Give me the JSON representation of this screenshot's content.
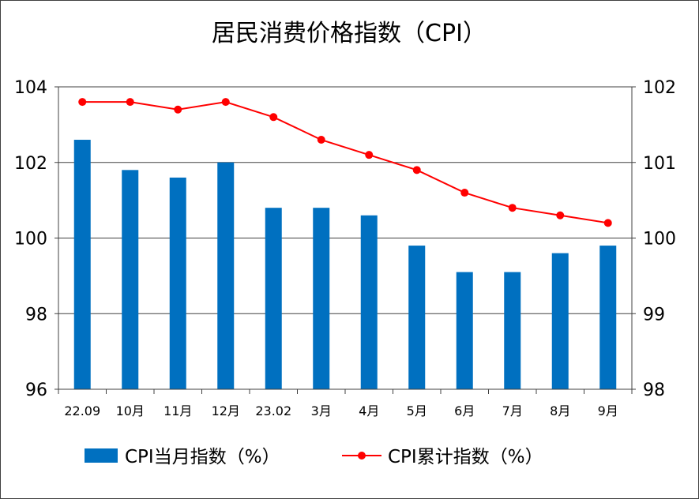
{
  "chart_data": {
    "type": "bar+line",
    "title": "居民消费价格指数（CPI）",
    "categories": [
      "22.09",
      "10月",
      "11月",
      "12月",
      "23.02",
      "3月",
      "4月",
      "5月",
      "6月",
      "7月",
      "8月",
      "9月"
    ],
    "series": [
      {
        "name": "CPI当月指数（%）",
        "type": "bar",
        "axis": "left",
        "color": "#0070C0",
        "values": [
          102.6,
          101.8,
          101.6,
          102.0,
          100.8,
          100.8,
          100.6,
          99.8,
          99.1,
          99.1,
          99.6,
          99.8
        ]
      },
      {
        "name": "CPI累计指数（%）",
        "type": "line",
        "axis": "right",
        "color": "#FF0000",
        "values": [
          101.8,
          101.8,
          101.7,
          101.8,
          101.6,
          101.3,
          101.1,
          100.9,
          100.6,
          100.4,
          100.3,
          100.2
        ]
      }
    ],
    "left_axis": {
      "ylim": [
        96,
        104
      ],
      "ticks": [
        "96",
        "98",
        "100",
        "102",
        "104"
      ]
    },
    "right_axis": {
      "ylim": [
        98,
        102
      ],
      "ticks": [
        "98",
        "99",
        "100",
        "101",
        "102"
      ]
    },
    "grid": true,
    "legend": "bottom"
  }
}
